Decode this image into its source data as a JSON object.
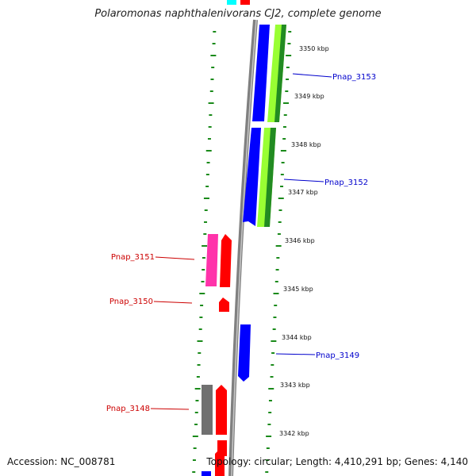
{
  "title": "Polaromonas naphthalenivorans CJ2, complete genome",
  "footer": {
    "accession": "Accession: NC_008781",
    "summary": "Topology: circular; Length: 4,410,291 bp; Genes: 4,140"
  },
  "colors": {
    "backbone": "#808080",
    "tick": "#1a8a1a",
    "forward_label": "#0000cc",
    "reverse_label": "#cc0000",
    "blue_gene": "#0000ff",
    "red_gene": "#ff0000",
    "magenta_gene": "#ff33aa",
    "gray_gene": "#707070",
    "green_gene": "#228b22",
    "lightgreen_gene": "#99ff33",
    "cyan_gene": "#00ffff"
  },
  "scale_labels": [
    "3350 kbp",
    "3349 kbp",
    "3348 kbp",
    "3347 kbp",
    "3346 kbp",
    "3345 kbp",
    "3344 kbp",
    "3343 kbp",
    "3342 kbp"
  ],
  "gene_labels": {
    "forward": [
      "Pnap_3153",
      "Pnap_3152",
      "Pnap_3149"
    ],
    "reverse": [
      "Pnap_3151",
      "Pnap_3150",
      "Pnap_3148"
    ]
  }
}
